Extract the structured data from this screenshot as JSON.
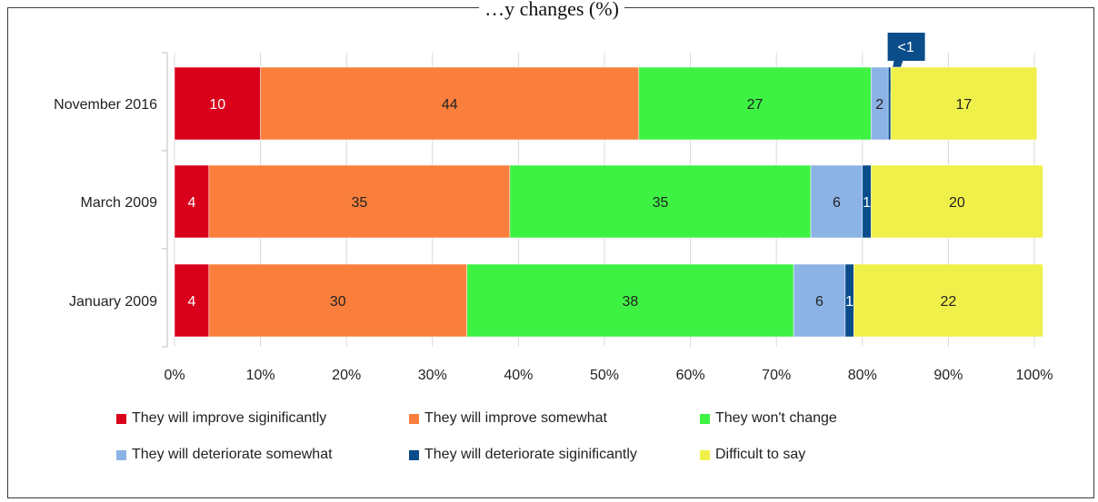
{
  "chart_data": {
    "type": "bar",
    "orientation": "horizontal",
    "stacked": true,
    "title": "…y changes (%)",
    "categories": [
      "November 2016",
      "March 2009",
      "January 2009"
    ],
    "series": [
      {
        "name": "They will improve siginificantly",
        "color": "#d9001b",
        "values": [
          10,
          4,
          4
        ],
        "labels": [
          "10",
          "4",
          "4"
        ]
      },
      {
        "name": "They will improve somewhat",
        "color": "#fa7f3c",
        "values": [
          44,
          35,
          30
        ],
        "labels": [
          "44",
          "35",
          "30"
        ]
      },
      {
        "name": "They won't change",
        "color": "#3ef244",
        "values": [
          27,
          35,
          38
        ],
        "labels": [
          "27",
          "35",
          "38"
        ]
      },
      {
        "name": "They will deteriorate somewhat",
        "color": "#8cb3e6",
        "values": [
          2,
          6,
          6
        ],
        "labels": [
          "2",
          "6",
          "6"
        ]
      },
      {
        "name": "They will deteriorate siginificantly",
        "color": "#0b4d8a",
        "values": [
          0.3,
          1,
          1
        ],
        "labels": [
          "<1",
          "1",
          "1"
        ]
      },
      {
        "name": "Difficult to say",
        "color": "#f0f04a",
        "values": [
          17,
          20,
          22
        ],
        "labels": [
          "17",
          "20",
          "22"
        ]
      }
    ],
    "xlim": [
      0,
      100
    ],
    "xticks": [
      "0%",
      "10%",
      "20%",
      "30%",
      "40%",
      "50%",
      "60%",
      "70%",
      "80%",
      "90%",
      "100%"
    ],
    "xlabel": "",
    "ylabel": "",
    "grid": true,
    "legend_position": "bottom"
  }
}
